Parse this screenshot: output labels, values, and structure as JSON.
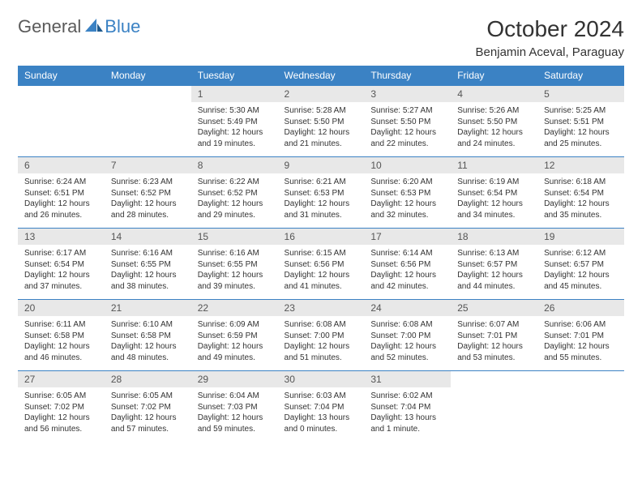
{
  "logo": {
    "general": "General",
    "blue": "Blue"
  },
  "header": {
    "month_title": "October 2024",
    "location": "Benjamin Aceval, Paraguay"
  },
  "colors": {
    "header_bg": "#3b82c4",
    "header_text": "#ffffff",
    "day_number_bg": "#e8e8e8",
    "border": "#3b82c4"
  },
  "weekdays": [
    "Sunday",
    "Monday",
    "Tuesday",
    "Wednesday",
    "Thursday",
    "Friday",
    "Saturday"
  ],
  "grid": [
    [
      null,
      null,
      {
        "n": "1",
        "sunrise": "5:30 AM",
        "sunset": "5:49 PM",
        "daylight": "12 hours and 19 minutes."
      },
      {
        "n": "2",
        "sunrise": "5:28 AM",
        "sunset": "5:50 PM",
        "daylight": "12 hours and 21 minutes."
      },
      {
        "n": "3",
        "sunrise": "5:27 AM",
        "sunset": "5:50 PM",
        "daylight": "12 hours and 22 minutes."
      },
      {
        "n": "4",
        "sunrise": "5:26 AM",
        "sunset": "5:50 PM",
        "daylight": "12 hours and 24 minutes."
      },
      {
        "n": "5",
        "sunrise": "5:25 AM",
        "sunset": "5:51 PM",
        "daylight": "12 hours and 25 minutes."
      }
    ],
    [
      {
        "n": "6",
        "sunrise": "6:24 AM",
        "sunset": "6:51 PM",
        "daylight": "12 hours and 26 minutes."
      },
      {
        "n": "7",
        "sunrise": "6:23 AM",
        "sunset": "6:52 PM",
        "daylight": "12 hours and 28 minutes."
      },
      {
        "n": "8",
        "sunrise": "6:22 AM",
        "sunset": "6:52 PM",
        "daylight": "12 hours and 29 minutes."
      },
      {
        "n": "9",
        "sunrise": "6:21 AM",
        "sunset": "6:53 PM",
        "daylight": "12 hours and 31 minutes."
      },
      {
        "n": "10",
        "sunrise": "6:20 AM",
        "sunset": "6:53 PM",
        "daylight": "12 hours and 32 minutes."
      },
      {
        "n": "11",
        "sunrise": "6:19 AM",
        "sunset": "6:54 PM",
        "daylight": "12 hours and 34 minutes."
      },
      {
        "n": "12",
        "sunrise": "6:18 AM",
        "sunset": "6:54 PM",
        "daylight": "12 hours and 35 minutes."
      }
    ],
    [
      {
        "n": "13",
        "sunrise": "6:17 AM",
        "sunset": "6:54 PM",
        "daylight": "12 hours and 37 minutes."
      },
      {
        "n": "14",
        "sunrise": "6:16 AM",
        "sunset": "6:55 PM",
        "daylight": "12 hours and 38 minutes."
      },
      {
        "n": "15",
        "sunrise": "6:16 AM",
        "sunset": "6:55 PM",
        "daylight": "12 hours and 39 minutes."
      },
      {
        "n": "16",
        "sunrise": "6:15 AM",
        "sunset": "6:56 PM",
        "daylight": "12 hours and 41 minutes."
      },
      {
        "n": "17",
        "sunrise": "6:14 AM",
        "sunset": "6:56 PM",
        "daylight": "12 hours and 42 minutes."
      },
      {
        "n": "18",
        "sunrise": "6:13 AM",
        "sunset": "6:57 PM",
        "daylight": "12 hours and 44 minutes."
      },
      {
        "n": "19",
        "sunrise": "6:12 AM",
        "sunset": "6:57 PM",
        "daylight": "12 hours and 45 minutes."
      }
    ],
    [
      {
        "n": "20",
        "sunrise": "6:11 AM",
        "sunset": "6:58 PM",
        "daylight": "12 hours and 46 minutes."
      },
      {
        "n": "21",
        "sunrise": "6:10 AM",
        "sunset": "6:58 PM",
        "daylight": "12 hours and 48 minutes."
      },
      {
        "n": "22",
        "sunrise": "6:09 AM",
        "sunset": "6:59 PM",
        "daylight": "12 hours and 49 minutes."
      },
      {
        "n": "23",
        "sunrise": "6:08 AM",
        "sunset": "7:00 PM",
        "daylight": "12 hours and 51 minutes."
      },
      {
        "n": "24",
        "sunrise": "6:08 AM",
        "sunset": "7:00 PM",
        "daylight": "12 hours and 52 minutes."
      },
      {
        "n": "25",
        "sunrise": "6:07 AM",
        "sunset": "7:01 PM",
        "daylight": "12 hours and 53 minutes."
      },
      {
        "n": "26",
        "sunrise": "6:06 AM",
        "sunset": "7:01 PM",
        "daylight": "12 hours and 55 minutes."
      }
    ],
    [
      {
        "n": "27",
        "sunrise": "6:05 AM",
        "sunset": "7:02 PM",
        "daylight": "12 hours and 56 minutes."
      },
      {
        "n": "28",
        "sunrise": "6:05 AM",
        "sunset": "7:02 PM",
        "daylight": "12 hours and 57 minutes."
      },
      {
        "n": "29",
        "sunrise": "6:04 AM",
        "sunset": "7:03 PM",
        "daylight": "12 hours and 59 minutes."
      },
      {
        "n": "30",
        "sunrise": "6:03 AM",
        "sunset": "7:04 PM",
        "daylight": "13 hours and 0 minutes."
      },
      {
        "n": "31",
        "sunrise": "6:02 AM",
        "sunset": "7:04 PM",
        "daylight": "13 hours and 1 minute."
      },
      null,
      null
    ]
  ],
  "labels": {
    "sunrise": "Sunrise:",
    "sunset": "Sunset:",
    "daylight": "Daylight:"
  }
}
